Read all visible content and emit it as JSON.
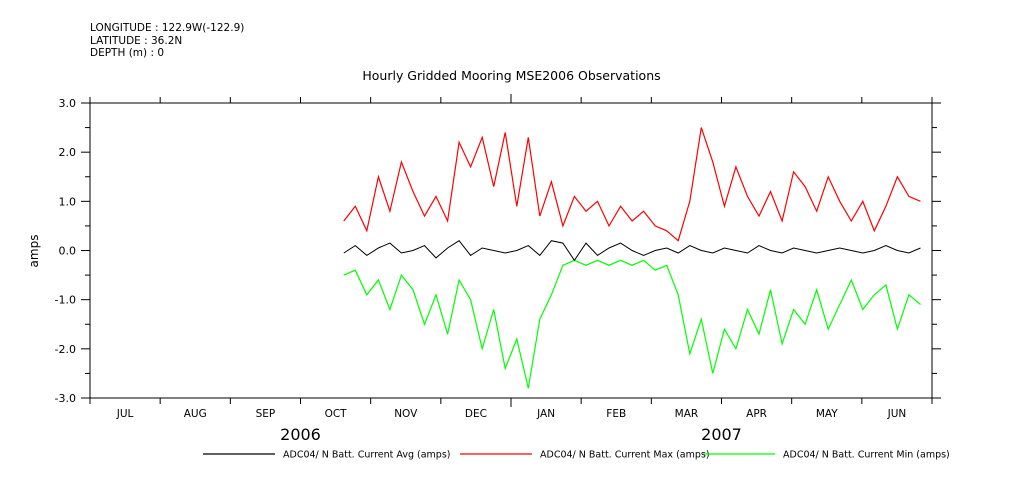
{
  "meta": {
    "longitude": "LONGITUDE : 122.9W(-122.9)",
    "latitude": "LATITUDE : 36.2N",
    "depth": "DEPTH (m) : 0"
  },
  "colors": {
    "avg": "#000000",
    "max": "#ff0000",
    "min": "#00ff00"
  },
  "chart_data": {
    "type": "line",
    "title": "Hourly Gridded Mooring MSE2006 Observations",
    "xlabel": "",
    "ylabel": "amps",
    "ylim": [
      -3.0,
      3.0
    ],
    "yticks": [
      "3.0",
      "2.0",
      "1.0",
      "0.0",
      "-1.0",
      "-2.0",
      "-3.0"
    ],
    "ytick_values": [
      3.0,
      2.0,
      1.0,
      0.0,
      -1.0,
      -2.0,
      -3.0
    ],
    "months": [
      "JUL",
      "AUG",
      "SEP",
      "OCT",
      "NOV",
      "DEC",
      "JAN",
      "FEB",
      "MAR",
      "APR",
      "MAY",
      "JUN"
    ],
    "years": [
      "2006",
      "2007"
    ],
    "grid": false,
    "legend_position": "bottom",
    "x_unit": "days since 2006-07-01 (approximate)",
    "series": [
      {
        "name": "ADC04/ N Batt. Current Avg (amps)",
        "color": "#000000",
        "x": [
          110,
          115,
          120,
          125,
          130,
          135,
          140,
          145,
          150,
          155,
          160,
          165,
          170,
          175,
          180,
          185,
          190,
          195,
          200,
          205,
          210,
          215,
          220,
          225,
          230,
          235,
          240,
          245,
          250,
          255,
          260,
          265,
          270,
          275,
          280,
          285,
          290,
          295,
          300,
          305,
          310,
          315,
          320,
          325,
          330,
          335,
          340,
          345,
          350,
          355,
          360
        ],
        "values": [
          -0.05,
          0.1,
          -0.1,
          0.05,
          0.15,
          -0.05,
          0.0,
          0.1,
          -0.15,
          0.05,
          0.2,
          -0.1,
          0.05,
          0.0,
          -0.05,
          0.0,
          0.1,
          -0.1,
          0.2,
          0.15,
          -0.2,
          0.15,
          -0.1,
          0.05,
          0.15,
          0.0,
          -0.1,
          0.0,
          0.05,
          -0.05,
          0.1,
          0.0,
          -0.05,
          0.05,
          0.0,
          -0.05,
          0.1,
          0.0,
          -0.05,
          0.05,
          0.0,
          -0.05,
          0.0,
          0.05,
          0.0,
          -0.05,
          0.0,
          0.1,
          0.0,
          -0.05,
          0.05
        ]
      },
      {
        "name": "ADC04/ N Batt. Current Max (amps)",
        "color": "#ff0000",
        "x": [
          110,
          115,
          120,
          125,
          130,
          135,
          140,
          145,
          150,
          155,
          160,
          165,
          170,
          175,
          180,
          185,
          190,
          195,
          200,
          205,
          210,
          215,
          220,
          225,
          230,
          235,
          240,
          245,
          250,
          255,
          260,
          265,
          270,
          275,
          280,
          285,
          290,
          295,
          300,
          305,
          310,
          315,
          320,
          325,
          330,
          335,
          340,
          345,
          350,
          355,
          360
        ],
        "values": [
          0.6,
          0.9,
          0.4,
          1.5,
          0.8,
          1.8,
          1.2,
          0.7,
          1.1,
          0.6,
          2.2,
          1.7,
          2.3,
          1.3,
          2.4,
          0.9,
          2.3,
          0.7,
          1.4,
          0.5,
          1.1,
          0.8,
          1.0,
          0.5,
          0.9,
          0.6,
          0.8,
          0.5,
          0.4,
          0.2,
          1.0,
          2.5,
          1.8,
          0.9,
          1.7,
          1.1,
          0.7,
          1.2,
          0.6,
          1.6,
          1.3,
          0.8,
          1.5,
          1.0,
          0.6,
          1.0,
          0.4,
          0.9,
          1.5,
          1.1,
          1.0
        ]
      },
      {
        "name": "ADC04/ N Batt. Current Min (amps)",
        "color": "#00ff00",
        "x": [
          110,
          115,
          120,
          125,
          130,
          135,
          140,
          145,
          150,
          155,
          160,
          165,
          170,
          175,
          180,
          185,
          190,
          195,
          200,
          205,
          210,
          215,
          220,
          225,
          230,
          235,
          240,
          245,
          250,
          255,
          260,
          265,
          270,
          275,
          280,
          285,
          290,
          295,
          300,
          305,
          310,
          315,
          320,
          325,
          330,
          335,
          340,
          345,
          350,
          355,
          360
        ],
        "values": [
          -0.5,
          -0.4,
          -0.9,
          -0.6,
          -1.2,
          -0.5,
          -0.8,
          -1.5,
          -0.9,
          -1.7,
          -0.6,
          -1.0,
          -2.0,
          -1.2,
          -2.4,
          -1.8,
          -2.8,
          -1.4,
          -0.9,
          -0.3,
          -0.2,
          -0.3,
          -0.2,
          -0.3,
          -0.2,
          -0.3,
          -0.2,
          -0.4,
          -0.3,
          -0.9,
          -2.1,
          -1.4,
          -2.5,
          -1.6,
          -2.0,
          -1.2,
          -1.7,
          -0.8,
          -1.9,
          -1.2,
          -1.5,
          -0.8,
          -1.6,
          -1.1,
          -0.6,
          -1.2,
          -0.9,
          -0.7,
          -1.6,
          -0.9,
          -1.1
        ]
      }
    ]
  }
}
